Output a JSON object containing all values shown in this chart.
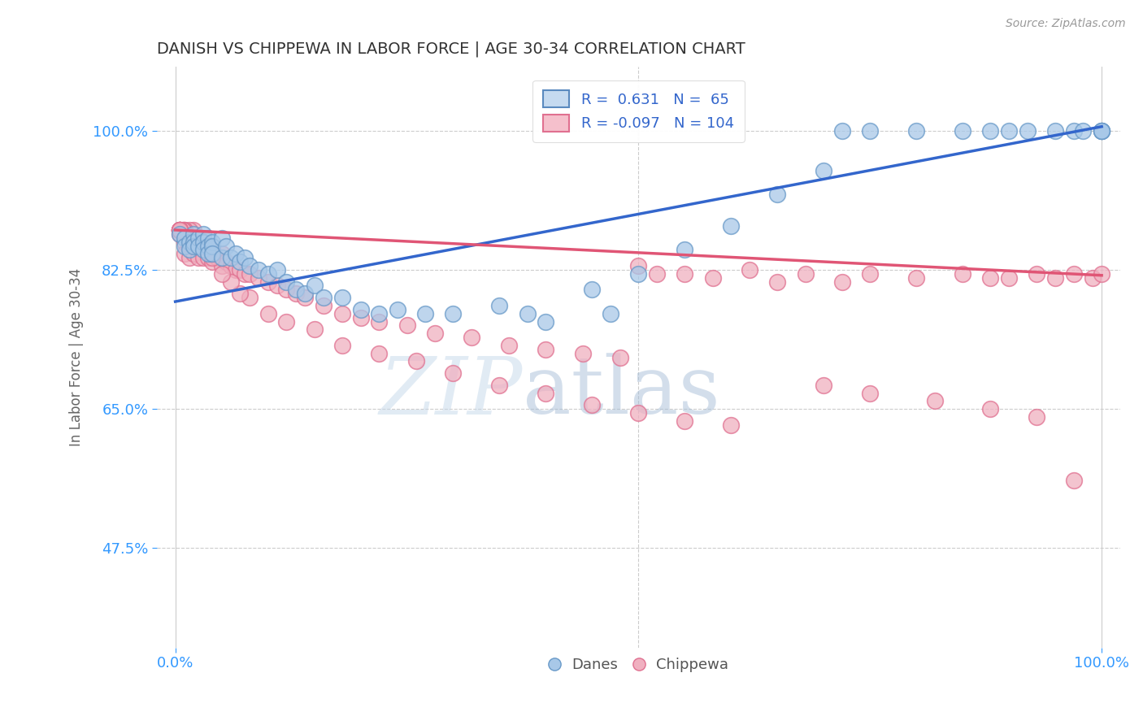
{
  "title": "DANISH VS CHIPPEWA IN LABOR FORCE | AGE 30-34 CORRELATION CHART",
  "ylabel": "In Labor Force | Age 30-34",
  "source_text": "Source: ZipAtlas.com",
  "xlim": [
    -0.02,
    1.02
  ],
  "ylim": [
    0.35,
    1.08
  ],
  "x_tick_labels": [
    "0.0%",
    "100.0%"
  ],
  "x_tick_values": [
    0.0,
    1.0
  ],
  "y_tick_labels": [
    "47.5%",
    "65.0%",
    "82.5%",
    "100.0%"
  ],
  "y_tick_values": [
    0.475,
    0.65,
    0.825,
    1.0
  ],
  "danes_color": "#a8c8e8",
  "danes_edge": "#6899c8",
  "chippewa_color": "#f0b0c0",
  "chippewa_edge": "#e07090",
  "watermark_zip": "ZIP",
  "watermark_atlas": "atlas",
  "danes_line_x": [
    0.0,
    1.0
  ],
  "danes_line_y": [
    0.785,
    1.005
  ],
  "chippewa_line_x": [
    0.0,
    1.0
  ],
  "chippewa_line_y": [
    0.875,
    0.818
  ],
  "danes_line_color": "#3366cc",
  "chippewa_line_color": "#e05575",
  "danes_x": [
    0.005,
    0.01,
    0.01,
    0.015,
    0.015,
    0.02,
    0.02,
    0.02,
    0.025,
    0.025,
    0.03,
    0.03,
    0.03,
    0.035,
    0.035,
    0.035,
    0.04,
    0.04,
    0.04,
    0.05,
    0.05,
    0.055,
    0.06,
    0.065,
    0.07,
    0.075,
    0.08,
    0.09,
    0.1,
    0.11,
    0.12,
    0.13,
    0.14,
    0.15,
    0.16,
    0.18,
    0.2,
    0.22,
    0.24,
    0.27,
    0.3,
    0.35,
    0.38,
    0.45,
    0.5,
    0.55,
    0.6,
    0.65,
    0.7,
    0.72,
    0.75,
    0.8,
    0.85,
    0.88,
    0.9,
    0.92,
    0.95,
    0.97,
    0.98,
    1.0,
    1.0,
    1.0,
    1.0,
    0.47,
    0.4
  ],
  "danes_y": [
    0.87,
    0.865,
    0.855,
    0.86,
    0.85,
    0.87,
    0.86,
    0.855,
    0.865,
    0.855,
    0.87,
    0.86,
    0.85,
    0.865,
    0.855,
    0.845,
    0.86,
    0.855,
    0.845,
    0.865,
    0.84,
    0.855,
    0.84,
    0.845,
    0.835,
    0.84,
    0.83,
    0.825,
    0.82,
    0.825,
    0.81,
    0.8,
    0.795,
    0.805,
    0.79,
    0.79,
    0.775,
    0.77,
    0.775,
    0.77,
    0.77,
    0.78,
    0.77,
    0.8,
    0.82,
    0.85,
    0.88,
    0.92,
    0.95,
    1.0,
    1.0,
    1.0,
    1.0,
    1.0,
    1.0,
    1.0,
    1.0,
    1.0,
    1.0,
    1.0,
    1.0,
    1.0,
    1.0,
    0.77,
    0.76
  ],
  "chippewa_x": [
    0.005,
    0.01,
    0.01,
    0.015,
    0.015,
    0.02,
    0.02,
    0.025,
    0.025,
    0.03,
    0.03,
    0.03,
    0.035,
    0.035,
    0.04,
    0.04,
    0.045,
    0.05,
    0.05,
    0.055,
    0.06,
    0.065,
    0.07,
    0.075,
    0.08,
    0.09,
    0.1,
    0.11,
    0.12,
    0.13,
    0.14,
    0.16,
    0.18,
    0.2,
    0.22,
    0.25,
    0.28,
    0.32,
    0.36,
    0.4,
    0.44,
    0.48,
    0.5,
    0.52,
    0.55,
    0.58,
    0.62,
    0.65,
    0.68,
    0.72,
    0.75,
    0.8,
    0.85,
    0.88,
    0.9,
    0.93,
    0.95,
    0.97,
    0.99,
    1.0,
    0.7,
    0.75,
    0.82,
    0.88,
    0.93,
    0.97,
    0.55,
    0.6,
    0.5,
    0.45,
    0.4,
    0.35,
    0.3,
    0.26,
    0.22,
    0.18,
    0.15,
    0.12,
    0.1,
    0.08,
    0.07,
    0.06,
    0.05,
    0.04,
    0.04,
    0.03,
    0.03,
    0.025,
    0.02,
    0.02,
    0.015,
    0.01,
    0.01,
    0.01,
    0.008,
    0.008,
    0.005,
    0.005,
    0.005,
    0.005,
    0.005,
    0.005,
    0.005,
    0.005
  ],
  "chippewa_y": [
    0.87,
    0.86,
    0.845,
    0.855,
    0.84,
    0.855,
    0.845,
    0.86,
    0.84,
    0.865,
    0.85,
    0.84,
    0.855,
    0.84,
    0.85,
    0.835,
    0.84,
    0.845,
    0.83,
    0.835,
    0.83,
    0.825,
    0.825,
    0.82,
    0.82,
    0.815,
    0.81,
    0.805,
    0.8,
    0.795,
    0.79,
    0.78,
    0.77,
    0.765,
    0.76,
    0.755,
    0.745,
    0.74,
    0.73,
    0.725,
    0.72,
    0.715,
    0.83,
    0.82,
    0.82,
    0.815,
    0.825,
    0.81,
    0.82,
    0.81,
    0.82,
    0.815,
    0.82,
    0.815,
    0.815,
    0.82,
    0.815,
    0.82,
    0.815,
    0.82,
    0.68,
    0.67,
    0.66,
    0.65,
    0.64,
    0.56,
    0.635,
    0.63,
    0.645,
    0.655,
    0.67,
    0.68,
    0.695,
    0.71,
    0.72,
    0.73,
    0.75,
    0.76,
    0.77,
    0.79,
    0.795,
    0.81,
    0.82,
    0.84,
    0.845,
    0.855,
    0.86,
    0.865,
    0.87,
    0.875,
    0.875,
    0.875,
    0.87,
    0.875,
    0.875,
    0.875,
    0.875,
    0.875,
    0.875,
    0.875,
    0.875,
    0.875,
    0.875,
    0.875
  ]
}
